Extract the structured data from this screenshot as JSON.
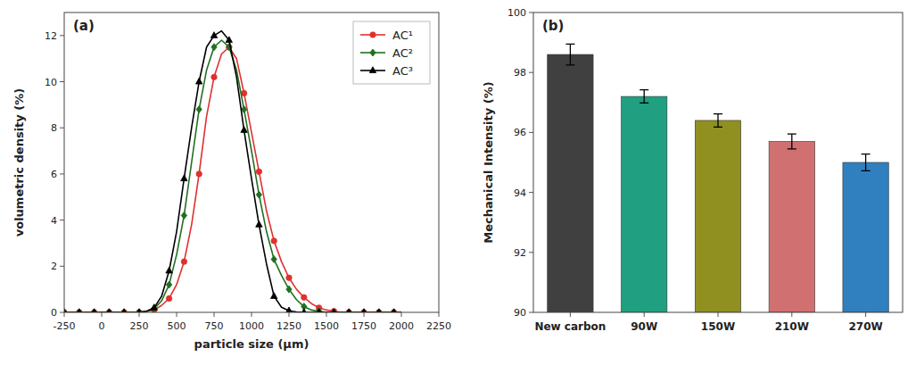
{
  "chart_data": [
    {
      "type": "line",
      "x_label": "particle size (μm)",
      "y_label": "volumetric density (%)",
      "annotations": [
        "(a)"
      ],
      "x": [
        -250,
        -200,
        -150,
        -100,
        -50,
        0,
        50,
        100,
        150,
        200,
        250,
        300,
        350,
        400,
        450,
        500,
        550,
        600,
        650,
        700,
        750,
        800,
        850,
        900,
        950,
        1000,
        1050,
        1100,
        1150,
        1200,
        1250,
        1300,
        1350,
        1400,
        1450,
        1500,
        1550,
        1600,
        1650,
        1700,
        1750,
        1800,
        1850,
        1900,
        1950,
        2000
      ],
      "series": [
        {
          "name": "AC¹",
          "color": "#e03030",
          "marker": "circle",
          "values": [
            0,
            0,
            0,
            0,
            0,
            0,
            0,
            0,
            0,
            0,
            0,
            0.05,
            0.1,
            0.3,
            0.6,
            1.2,
            2.2,
            3.8,
            6.0,
            8.5,
            10.2,
            11.2,
            11.5,
            11.0,
            9.5,
            7.8,
            6.1,
            4.4,
            3.1,
            2.2,
            1.5,
            1.0,
            0.65,
            0.38,
            0.2,
            0.1,
            0.05,
            0,
            0,
            0,
            0,
            0,
            0,
            0,
            0,
            0
          ]
        },
        {
          "name": "AC²",
          "color": "#207020",
          "marker": "diamond",
          "values": [
            0,
            0,
            0,
            0,
            0,
            0,
            0,
            0,
            0,
            0,
            0,
            0.05,
            0.15,
            0.5,
            1.2,
            2.5,
            4.2,
            6.5,
            8.8,
            10.5,
            11.5,
            11.8,
            11.5,
            10.5,
            8.8,
            7.0,
            5.1,
            3.5,
            2.3,
            1.6,
            1.0,
            0.55,
            0.25,
            0.1,
            0.05,
            0,
            0,
            0,
            0,
            0,
            0,
            0,
            0,
            0,
            0,
            0
          ]
        },
        {
          "name": "AC³",
          "color": "#000000",
          "marker": "triangle",
          "values": [
            0,
            0,
            0,
            0,
            0,
            0,
            0,
            0,
            0,
            0,
            0,
            0.05,
            0.2,
            0.7,
            1.8,
            3.5,
            5.8,
            8.0,
            10.0,
            11.5,
            12.0,
            12.2,
            11.8,
            10.2,
            7.9,
            5.8,
            3.8,
            2.1,
            0.7,
            0.22,
            0.07,
            0.02,
            0,
            0,
            0,
            0,
            0,
            0,
            0,
            0,
            0,
            0,
            0,
            0,
            0,
            0
          ]
        }
      ],
      "xlim": [
        -250,
        2250
      ],
      "ylim": [
        0,
        13
      ],
      "xticks": [
        -250,
        0,
        250,
        500,
        750,
        1000,
        1250,
        1500,
        1750,
        2000,
        2250
      ],
      "yticks": [
        0,
        2,
        4,
        6,
        8,
        10,
        12
      ],
      "legend": "upper right",
      "grid": false
    },
    {
      "type": "bar",
      "y_label": "Mechanical Intensity (%)",
      "annotations": [
        "(b)"
      ],
      "categories": [
        "New carbon",
        "90W",
        "150W",
        "210W",
        "270W"
      ],
      "values": [
        98.6,
        97.2,
        96.4,
        95.7,
        95.0
      ],
      "errors": [
        0.35,
        0.22,
        0.22,
        0.25,
        0.28
      ],
      "colors": [
        "#404040",
        "#20a080",
        "#909020",
        "#d07070",
        "#3080c0"
      ],
      "ylim": [
        90,
        100
      ],
      "yticks": [
        90,
        92,
        94,
        96,
        98,
        100
      ],
      "grid": false
    }
  ]
}
